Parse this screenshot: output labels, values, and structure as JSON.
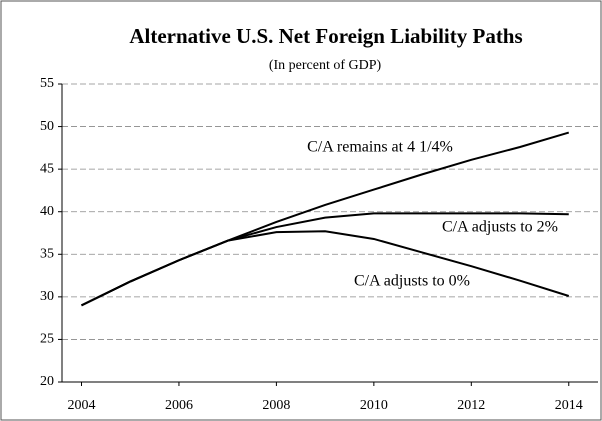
{
  "chart_data": {
    "type": "line",
    "title": "Alternative U.S. Net Foreign Liability Paths",
    "subtitle": "(In percent of GDP)",
    "x": [
      2004,
      2005,
      2006,
      2007,
      2008,
      2009,
      2010,
      2011,
      2012,
      2013,
      2014
    ],
    "series": [
      {
        "name": "C/A remains at 4 1/4%",
        "color": "#000000",
        "values": [
          29,
          31.8,
          34.3,
          36.6,
          38.8,
          40.8,
          42.6,
          44.4,
          46.1,
          47.6,
          49.3
        ]
      },
      {
        "name": "C/A adjusts to 2%",
        "color": "#000000",
        "values": [
          29,
          31.8,
          34.3,
          36.6,
          38.2,
          39.3,
          39.8,
          39.8,
          39.8,
          39.8,
          39.7
        ]
      },
      {
        "name": "C/A adjusts to 0%",
        "color": "#000000",
        "values": [
          29,
          31.8,
          34.3,
          36.6,
          37.6,
          37.7,
          36.8,
          35.2,
          33.6,
          31.9,
          30.1
        ]
      }
    ],
    "xlim": [
      2003.6,
      2014.6
    ],
    "xticks": [
      2004,
      2006,
      2008,
      2010,
      2012,
      2014
    ],
    "ylim": [
      20,
      55
    ],
    "yticks": [
      20,
      25,
      30,
      35,
      40,
      45,
      50,
      55
    ],
    "grid": true
  }
}
